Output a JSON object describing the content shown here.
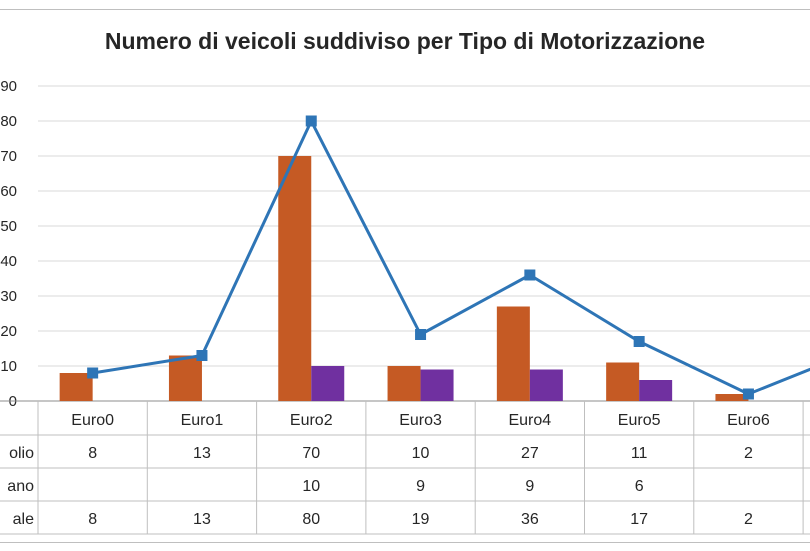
{
  "chart_data": {
    "type": "bar",
    "title": "Numero di veicoli suddiviso per Tipo di Motorizzazione",
    "categories": [
      "Euro0",
      "Euro1",
      "Euro2",
      "Euro3",
      "Euro4",
      "Euro5",
      "Euro6"
    ],
    "y_tick_labels": [
      "0",
      "10",
      "20",
      "30",
      "40",
      "50",
      "60",
      "70",
      "80",
      "90"
    ],
    "ylim": [
      0,
      90
    ],
    "grid": true,
    "series": [
      {
        "name": "olio",
        "kind": "bar",
        "color": "#C55A24",
        "values": [
          8,
          13,
          70,
          10,
          27,
          11,
          2
        ]
      },
      {
        "name": "ano",
        "kind": "bar",
        "color": "#7030A0",
        "values": [
          null,
          null,
          10,
          9,
          9,
          6,
          null
        ]
      },
      {
        "name": "ale",
        "kind": "line",
        "color": "#2E75B6",
        "values": [
          8,
          13,
          80,
          19,
          36,
          17,
          2
        ]
      }
    ],
    "table_rows": [
      {
        "label": "olio",
        "cells": [
          "8",
          "13",
          "70",
          "10",
          "27",
          "11",
          "2"
        ]
      },
      {
        "label": "ano",
        "cells": [
          "",
          "",
          "10",
          "9",
          "9",
          "6",
          ""
        ]
      },
      {
        "label": "ale",
        "cells": [
          "8",
          "13",
          "80",
          "19",
          "36",
          "17",
          "2"
        ]
      }
    ]
  }
}
